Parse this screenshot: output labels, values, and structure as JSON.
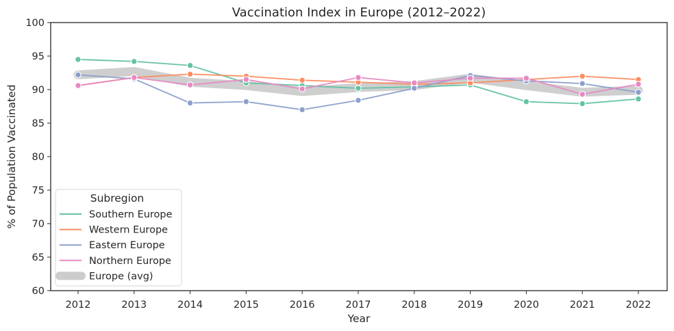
{
  "chart_data": {
    "type": "line",
    "title": "Vaccination Index in Europe (2012–2022)",
    "xlabel": "Year",
    "ylabel": "% of Population Vaccinated",
    "x": [
      2012,
      2013,
      2014,
      2015,
      2016,
      2017,
      2018,
      2019,
      2020,
      2021,
      2022
    ],
    "x_tick_labels": [
      "2012",
      "2013",
      "2014",
      "2015",
      "2016",
      "2017",
      "2018",
      "2019",
      "2020",
      "2021",
      "2022"
    ],
    "ylim": [
      60,
      100
    ],
    "y_ticks": [
      60,
      65,
      70,
      75,
      80,
      85,
      90,
      95,
      100
    ],
    "y_tick_labels": [
      "60",
      "65",
      "70",
      "75",
      "80",
      "85",
      "90",
      "95",
      "100"
    ],
    "grid": false,
    "legend": {
      "title": "Subregion",
      "placement": "lower-left"
    },
    "series": [
      {
        "name": "Southern Europe",
        "color": "#66c2a5",
        "values": [
          94.5,
          94.2,
          93.6,
          91.0,
          90.6,
          90.2,
          90.4,
          90.7,
          88.2,
          87.9,
          88.6
        ]
      },
      {
        "name": "Western Europe",
        "color": "#fc8d62",
        "values": [
          90.6,
          91.8,
          92.3,
          92.0,
          91.4,
          91.1,
          90.8,
          91.0,
          91.5,
          92.0,
          91.5
        ]
      },
      {
        "name": "Eastern Europe",
        "color": "#8da0cb",
        "values": [
          92.2,
          91.6,
          88.0,
          88.2,
          87.0,
          88.4,
          90.2,
          92.1,
          91.3,
          90.9,
          89.6
        ]
      },
      {
        "name": "Northern Europe",
        "color": "#e78ac3",
        "values": [
          90.6,
          91.8,
          90.7,
          91.5,
          90.1,
          91.8,
          91.0,
          91.7,
          91.7,
          89.3,
          90.8
        ]
      },
      {
        "name": "Europe (avg)",
        "color": "#cccccc",
        "values": [
          92.2,
          92.7,
          91.1,
          90.6,
          89.7,
          90.3,
          90.6,
          91.7,
          90.6,
          89.6,
          89.9
        ]
      }
    ]
  }
}
